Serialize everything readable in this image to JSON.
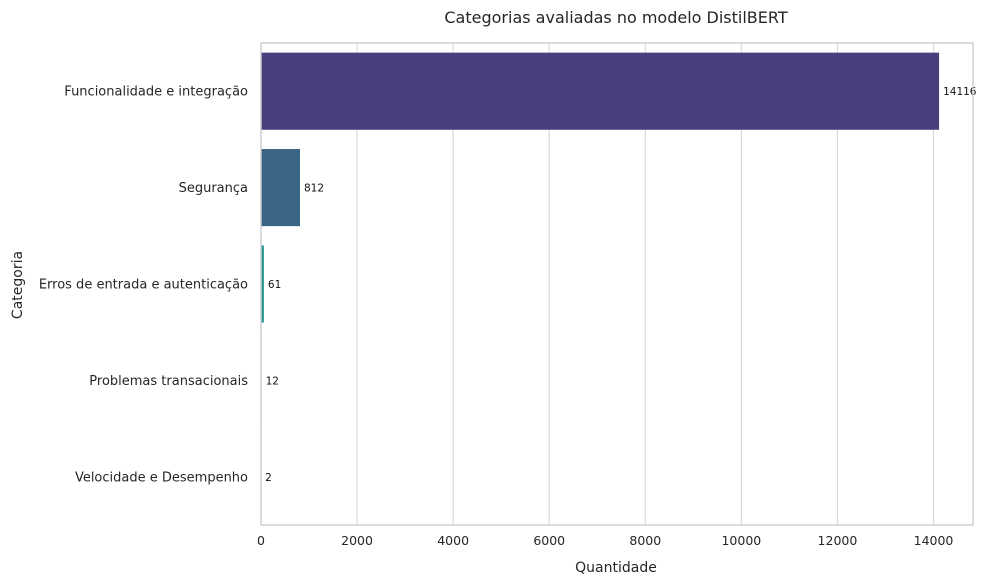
{
  "chart_data": {
    "type": "bar",
    "orientation": "horizontal",
    "title": "Categorias avaliadas no modelo DistilBERT",
    "xlabel": "Quantidade",
    "ylabel": "Categoria",
    "categories": [
      "Funcionalidade e integração",
      "Segurança",
      "Erros de entrada e autenticação",
      "Problemas transacionais",
      "Velocidade e Desempenho"
    ],
    "values": [
      14116,
      812,
      61,
      12,
      2
    ],
    "data_labels": [
      "14116",
      "812",
      "61",
      "12",
      "2"
    ],
    "colors": [
      "#4a3f7c",
      "#3b6585",
      "#2e9a8e",
      "#4fbc7a",
      "#b5d835"
    ],
    "xlim": [
      0,
      14822
    ],
    "xticks": [
      0,
      2000,
      4000,
      6000,
      8000,
      10000,
      12000,
      14000
    ],
    "xtick_labels": [
      "0",
      "2000",
      "4000",
      "6000",
      "8000",
      "10000",
      "12000",
      "14000"
    ],
    "grid": "x-axis vertical lines",
    "legend": "none"
  }
}
